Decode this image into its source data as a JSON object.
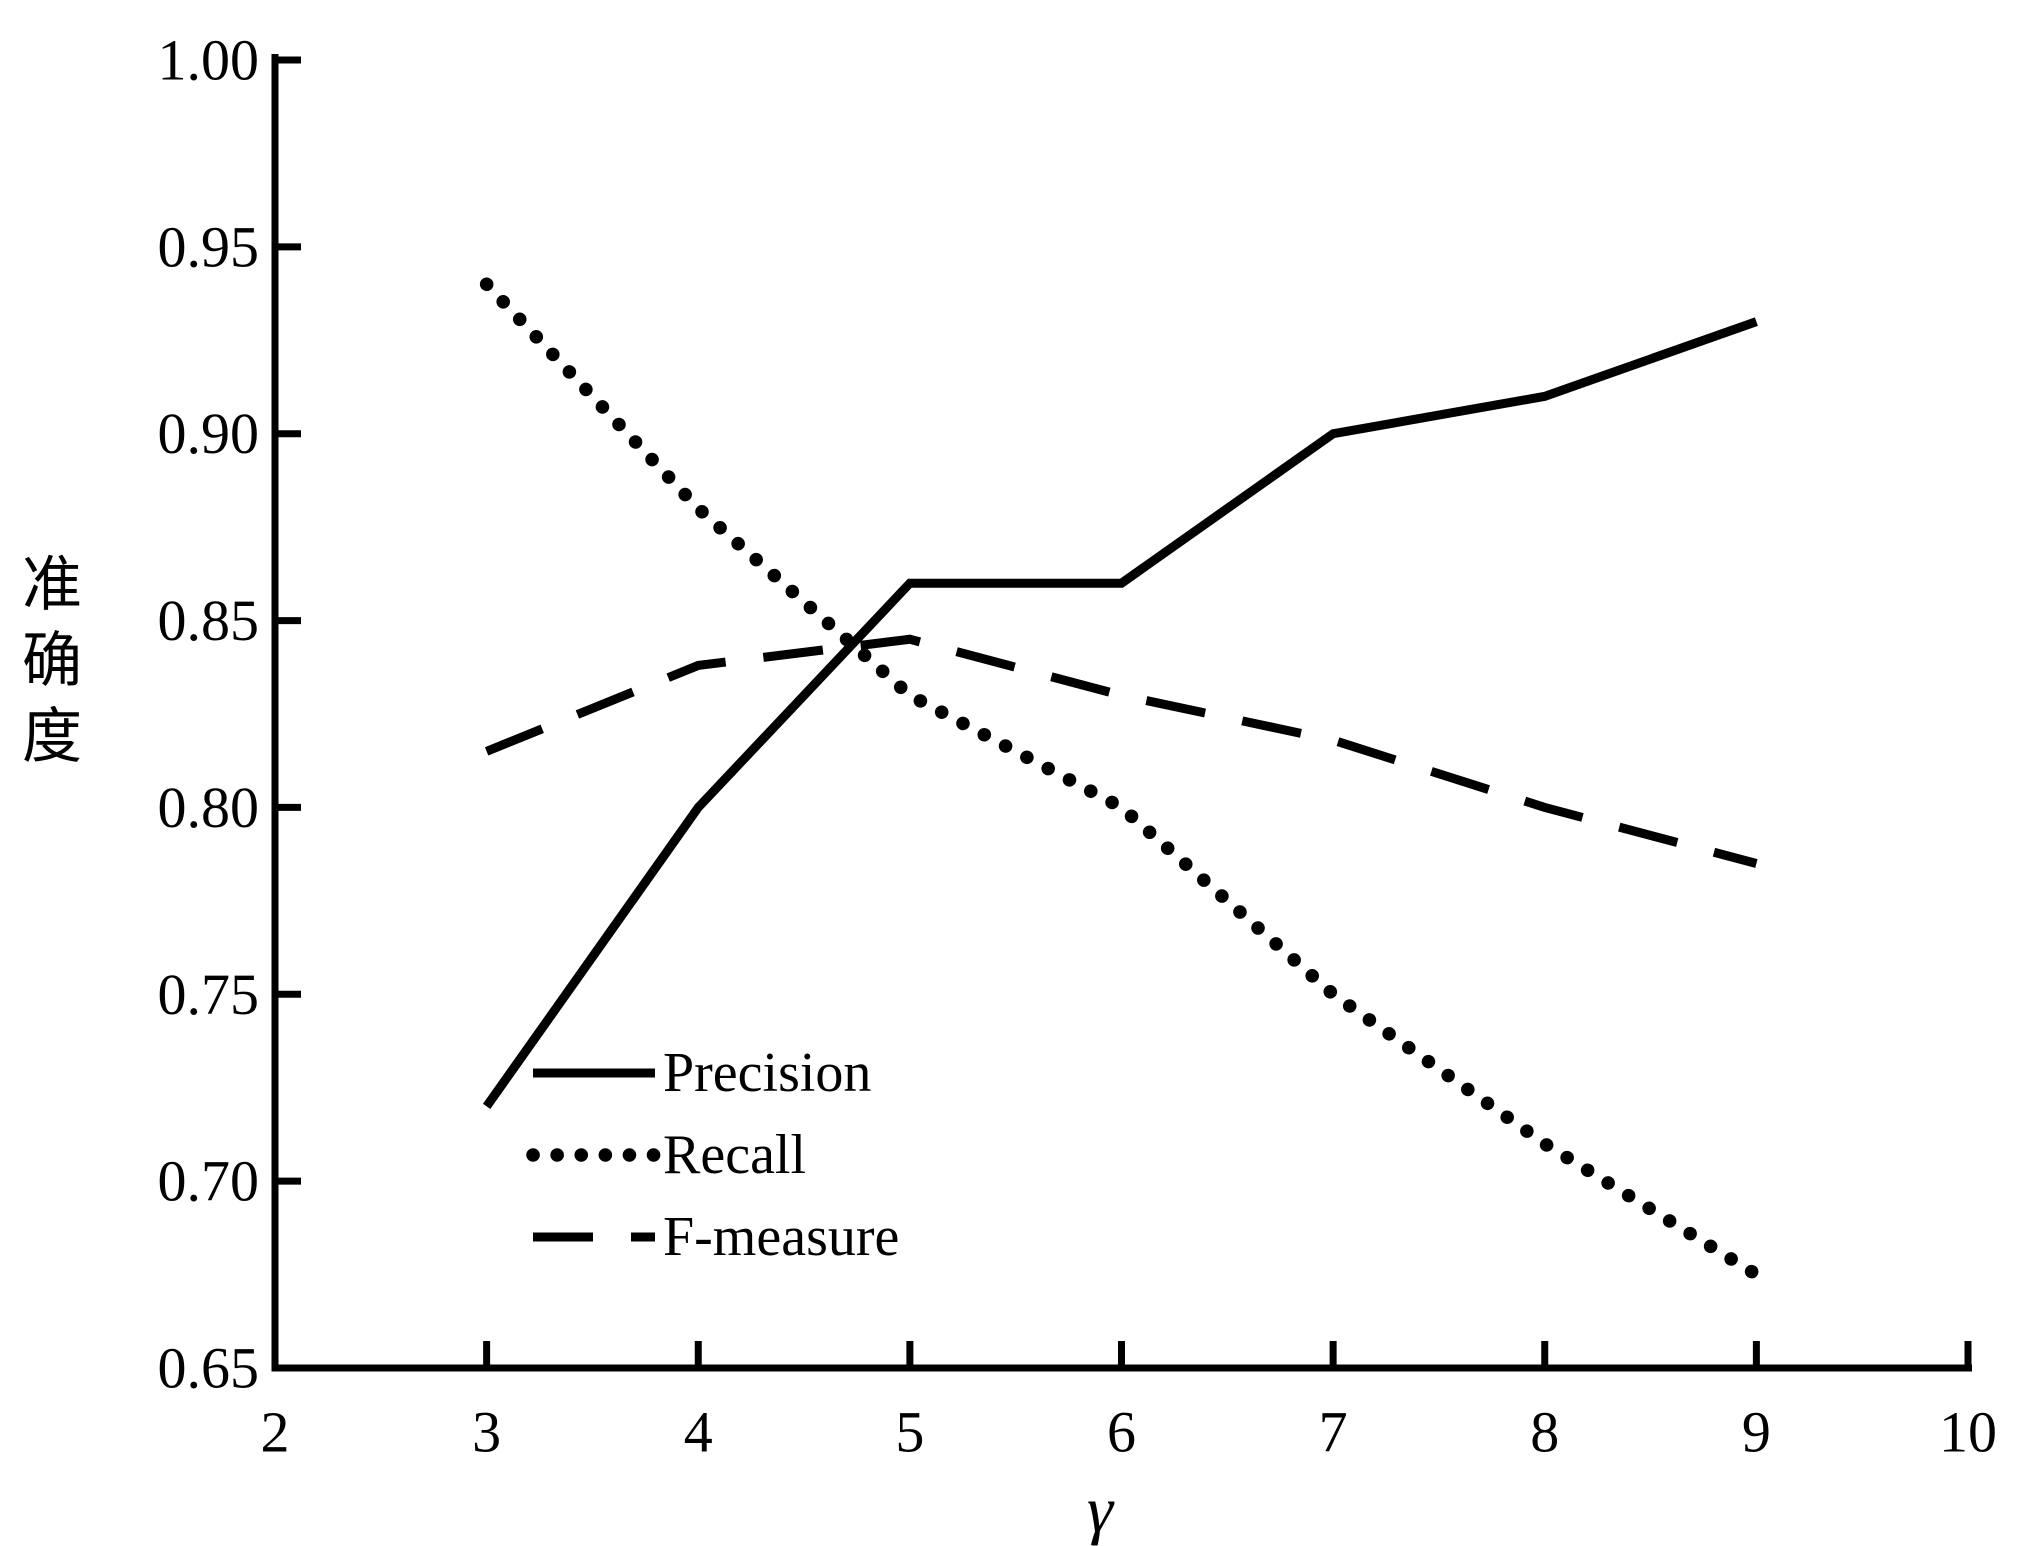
{
  "chart_data": {
    "type": "line",
    "title": "",
    "xlabel": "γ",
    "ylabel": "准确度",
    "xlim": [
      2,
      10
    ],
    "ylim": [
      0.65,
      1.0
    ],
    "x_ticks": [
      2,
      3,
      4,
      5,
      6,
      7,
      8,
      9,
      10
    ],
    "y_ticks": [
      0.65,
      0.7,
      0.75,
      0.8,
      0.85,
      0.9,
      0.95,
      1.0
    ],
    "grid": false,
    "background_color": "#ffffff",
    "line_color": "#000000",
    "legend_position": "inside-lower-left",
    "x": [
      3,
      4,
      5,
      6,
      7,
      8,
      9
    ],
    "series": [
      {
        "name": "Precision",
        "style": "solid",
        "values": [
          0.72,
          0.8,
          0.86,
          0.86,
          0.9,
          0.91,
          0.93
        ]
      },
      {
        "name": "Recall",
        "style": "dotted",
        "values": [
          0.94,
          0.88,
          0.83,
          0.8,
          0.75,
          0.71,
          0.675
        ]
      },
      {
        "name": "F-measure",
        "style": "dashed",
        "values": [
          0.815,
          0.838,
          0.845,
          0.83,
          0.818,
          0.8,
          0.785
        ]
      }
    ]
  }
}
